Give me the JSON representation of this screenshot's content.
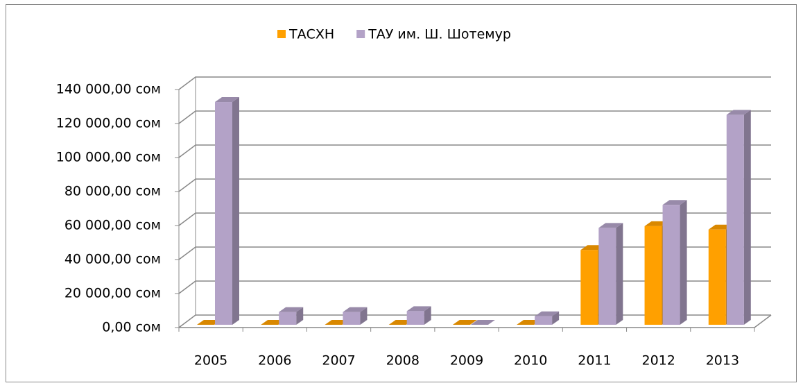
{
  "chart_data": {
    "type": "bar3d",
    "categories": [
      "2005",
      "2006",
      "2007",
      "2008",
      "2009",
      "2010",
      "2011",
      "2012",
      "2013"
    ],
    "series": [
      {
        "name": "ТАСХН",
        "color": "#ffa000",
        "values": [
          0,
          0,
          0,
          0,
          0,
          0,
          44000,
          58000,
          56000
        ]
      },
      {
        "name": "ТАУ им. Ш. Шотемур",
        "color": "#b3a2c7",
        "values": [
          131000,
          7500,
          7500,
          8000,
          0,
          5000,
          57000,
          70500,
          123500
        ]
      }
    ],
    "ylim": [
      0,
      140000
    ],
    "yticks": [
      {
        "value": 0,
        "label": "0,00 сом"
      },
      {
        "value": 20000,
        "label": "20 000,00 сом"
      },
      {
        "value": 40000,
        "label": "40 000,00 сом"
      },
      {
        "value": 60000,
        "label": "60 000,00 сом"
      },
      {
        "value": 80000,
        "label": "80 000,00 сом"
      },
      {
        "value": 100000,
        "label": "100 000,00 сом"
      },
      {
        "value": 120000,
        "label": "120 000,00 сом"
      },
      {
        "value": 140000,
        "label": "140 000,00 сом"
      }
    ],
    "grid": true,
    "legend": "top"
  }
}
